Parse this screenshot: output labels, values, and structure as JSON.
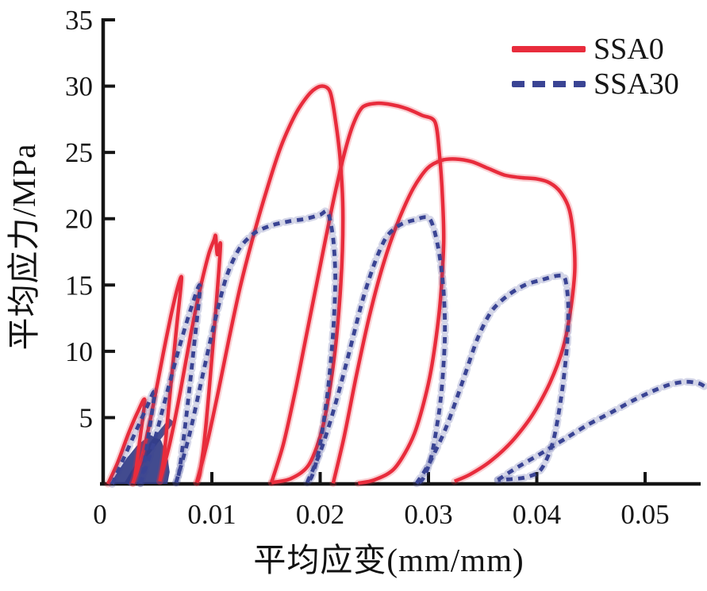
{
  "figure": {
    "background": "#ffffff"
  },
  "chart_data": {
    "type": "line",
    "title": "",
    "xlabel": "平均应变(mm/mm)",
    "ylabel": "平均应力/MPa",
    "xlim": [
      0,
      0.0555
    ],
    "ylim": [
      0,
      35
    ],
    "grid": false,
    "axis_color": "#151515",
    "x_ticks": [
      {
        "v": 0,
        "label": "0"
      },
      {
        "v": 0.01,
        "label": "0.01"
      },
      {
        "v": 0.02,
        "label": "0.02"
      },
      {
        "v": 0.03,
        "label": "0.03"
      },
      {
        "v": 0.04,
        "label": "0.04"
      },
      {
        "v": 0.05,
        "label": "0.05"
      }
    ],
    "y_ticks": [
      {
        "v": 5,
        "label": "5"
      },
      {
        "v": 10,
        "label": "10"
      },
      {
        "v": 15,
        "label": "15"
      },
      {
        "v": 20,
        "label": "20"
      },
      {
        "v": 25,
        "label": "25"
      },
      {
        "v": 30,
        "label": "30"
      },
      {
        "v": 35,
        "label": "35"
      }
    ],
    "legend": {
      "position": "top-right",
      "entries": [
        {
          "name": "SSA0",
          "color": "#e82c3c",
          "line_style": "solid"
        },
        {
          "name": "SSA30",
          "color": "#3a4494",
          "line_style": "dashed"
        }
      ]
    },
    "series": [
      {
        "name": "SSA0",
        "color": "#e82c3c",
        "line_style": "solid",
        "stroke_width": 4.5,
        "description": "cyclic compression stress-strain loops, plain specimen, peak 30 MPa at 0.020 strain",
        "segments": [
          [
            [
              0.0004,
              0
            ],
            [
              0.0013,
              1.6
            ],
            [
              0.0023,
              3.8
            ],
            [
              0.0032,
              5.5
            ],
            [
              0.0038,
              6.3
            ],
            [
              0.0033,
              3.0
            ],
            [
              0.0029,
              0.6
            ],
            [
              0.0027,
              0.05
            ]
          ],
          [
            [
              0.0027,
              0.05
            ],
            [
              0.0036,
              2.2
            ],
            [
              0.0046,
              6.0
            ],
            [
              0.0055,
              9.8
            ],
            [
              0.0062,
              12.6
            ],
            [
              0.0068,
              14.7
            ],
            [
              0.0072,
              15.5
            ],
            [
              0.0067,
              11.5
            ],
            [
              0.0061,
              6.5
            ],
            [
              0.0056,
              2.2
            ],
            [
              0.0052,
              0.2
            ]
          ],
          [
            [
              0.0052,
              0.2
            ],
            [
              0.0061,
              3.0
            ],
            [
              0.0071,
              7.0
            ],
            [
              0.0081,
              11.5
            ],
            [
              0.009,
              15.0
            ],
            [
              0.0097,
              17.3
            ],
            [
              0.0102,
              18.4
            ],
            [
              0.01035,
              18.7
            ],
            [
              0.0105,
              17.3
            ],
            [
              0.0108,
              18.1
            ],
            [
              0.0105,
              14.5
            ],
            [
              0.01,
              9.5
            ],
            [
              0.0094,
              4.0
            ],
            [
              0.0089,
              0.8
            ],
            [
              0.0086,
              0.1
            ]
          ],
          [
            [
              0.0086,
              0.1
            ],
            [
              0.0096,
              3.2
            ],
            [
              0.0106,
              7.0
            ],
            [
              0.0116,
              11.0
            ],
            [
              0.0126,
              14.8
            ],
            [
              0.0137,
              18.3
            ],
            [
              0.015,
              22.0
            ],
            [
              0.0164,
              25.5
            ],
            [
              0.0178,
              28.0
            ],
            [
              0.0191,
              29.5
            ],
            [
              0.0201,
              30.0
            ],
            [
              0.0209,
              29.6
            ],
            [
              0.0214,
              27.5
            ],
            [
              0.0219,
              24.0
            ],
            [
              0.0221,
              20.0
            ],
            [
              0.0219,
              15.0
            ],
            [
              0.0213,
              9.5
            ],
            [
              0.0203,
              4.5
            ],
            [
              0.019,
              1.5
            ],
            [
              0.0173,
              0.4
            ],
            [
              0.0155,
              0.1
            ]
          ],
          [
            [
              0.0155,
              0.1
            ],
            [
              0.0166,
              3.0
            ],
            [
              0.0177,
              7.0
            ],
            [
              0.0188,
              11.5
            ],
            [
              0.0199,
              16.0
            ],
            [
              0.021,
              20.5
            ],
            [
              0.0221,
              24.5
            ],
            [
              0.023,
              27.0
            ],
            [
              0.0239,
              28.4
            ],
            [
              0.0252,
              28.7
            ],
            [
              0.0266,
              28.6
            ],
            [
              0.028,
              28.3
            ],
            [
              0.0294,
              27.8
            ],
            [
              0.0306,
              27.3
            ],
            [
              0.031,
              25.0
            ],
            [
              0.0313,
              21.5
            ],
            [
              0.0314,
              18.0
            ],
            [
              0.031,
              13.0
            ],
            [
              0.0301,
              8.0
            ],
            [
              0.0287,
              3.8
            ],
            [
              0.0269,
              1.2
            ],
            [
              0.025,
              0.3
            ],
            [
              0.0235,
              0.05
            ]
          ],
          [
            [
              0.0212,
              0.05
            ],
            [
              0.0222,
              3.5
            ],
            [
              0.0233,
              8.0
            ],
            [
              0.0245,
              12.5
            ],
            [
              0.0258,
              16.5
            ],
            [
              0.0272,
              19.8
            ],
            [
              0.0286,
              22.3
            ],
            [
              0.0299,
              23.8
            ],
            [
              0.0312,
              24.4
            ],
            [
              0.0325,
              24.5
            ],
            [
              0.034,
              24.3
            ],
            [
              0.0355,
              23.8
            ],
            [
              0.037,
              23.3
            ],
            [
              0.0385,
              23.1
            ],
            [
              0.04,
              23.0
            ],
            [
              0.0412,
              22.7
            ],
            [
              0.0422,
              22.0
            ],
            [
              0.043,
              20.7
            ],
            [
              0.0434,
              18.5
            ],
            [
              0.0435,
              16.0
            ],
            [
              0.0431,
              13.0
            ],
            [
              0.0424,
              10.2
            ],
            [
              0.0412,
              7.6
            ],
            [
              0.0396,
              5.2
            ],
            [
              0.0377,
              3.2
            ],
            [
              0.0357,
              1.7
            ],
            [
              0.0338,
              0.7
            ],
            [
              0.0324,
              0.2
            ]
          ]
        ]
      },
      {
        "name": "SSA30",
        "color": "#3a4494",
        "line_style": "dashed",
        "stroke_width": 4.8,
        "dash_array": "8 7",
        "description": "cyclic compression stress-strain loops, 30% SSA specimen, peak ~20.5 MPa at 0.021 strain",
        "segments": [
          [
            [
              0.0008,
              0
            ],
            [
              0.0019,
              2.0
            ],
            [
              0.003,
              4.0
            ],
            [
              0.004,
              5.8
            ],
            [
              0.0047,
              6.9
            ],
            [
              0.0041,
              3.4
            ],
            [
              0.0036,
              0.7
            ],
            [
              0.0034,
              0.05
            ]
          ],
          [
            [
              0.0034,
              0.05
            ],
            [
              0.0046,
              3.0
            ],
            [
              0.0059,
              7.0
            ],
            [
              0.0071,
              10.6
            ],
            [
              0.0081,
              13.3
            ],
            [
              0.0089,
              14.9
            ],
            [
              0.0083,
              10.0
            ],
            [
              0.0076,
              4.8
            ],
            [
              0.007,
              1.0
            ],
            [
              0.0067,
              0.1
            ]
          ],
          [
            [
              0.0067,
              0.1
            ],
            [
              0.0079,
              3.6
            ],
            [
              0.0091,
              8.0
            ],
            [
              0.0102,
              12.0
            ],
            [
              0.0113,
              15.5
            ],
            [
              0.0125,
              17.7
            ],
            [
              0.0139,
              18.9
            ],
            [
              0.0155,
              19.5
            ],
            [
              0.0171,
              19.8
            ],
            [
              0.0187,
              20.0
            ],
            [
              0.02,
              20.3
            ],
            [
              0.0207,
              20.5
            ],
            [
              0.0212,
              18.5
            ],
            [
              0.0214,
              15.5
            ],
            [
              0.0212,
              11.5
            ],
            [
              0.0207,
              7.0
            ],
            [
              0.02,
              3.0
            ],
            [
              0.0193,
              0.7
            ],
            [
              0.0188,
              0.1
            ]
          ],
          [
            [
              0.0188,
              0.1
            ],
            [
              0.0201,
              2.6
            ],
            [
              0.0214,
              6.0
            ],
            [
              0.0227,
              10.0
            ],
            [
              0.0239,
              13.8
            ],
            [
              0.025,
              16.6
            ],
            [
              0.0261,
              18.6
            ],
            [
              0.0273,
              19.5
            ],
            [
              0.0287,
              19.9
            ],
            [
              0.0301,
              20.0
            ],
            [
              0.0309,
              17.8
            ],
            [
              0.0314,
              14.5
            ],
            [
              0.0315,
              10.8
            ],
            [
              0.0311,
              6.2
            ],
            [
              0.0303,
              2.2
            ],
            [
              0.0295,
              0.4
            ],
            [
              0.0289,
              0.05
            ]
          ],
          [
            [
              0.0289,
              0.05
            ],
            [
              0.0301,
              1.6
            ],
            [
              0.0316,
              4.2
            ],
            [
              0.0331,
              7.6
            ],
            [
              0.0345,
              10.9
            ],
            [
              0.0358,
              13.0
            ],
            [
              0.0373,
              14.2
            ],
            [
              0.0389,
              15.0
            ],
            [
              0.0405,
              15.4
            ],
            [
              0.0419,
              15.7
            ],
            [
              0.0426,
              15.5
            ],
            [
              0.0429,
              13.5
            ],
            [
              0.0428,
              10.5
            ],
            [
              0.0423,
              6.8
            ],
            [
              0.0415,
              3.2
            ],
            [
              0.0404,
              1.1
            ],
            [
              0.039,
              0.5
            ],
            [
              0.0374,
              0.35
            ],
            [
              0.0364,
              0.3
            ]
          ],
          [
            [
              0.0364,
              0.3
            ],
            [
              0.0383,
              1.3
            ],
            [
              0.0404,
              2.3
            ],
            [
              0.0426,
              3.4
            ],
            [
              0.0448,
              4.5
            ],
            [
              0.0469,
              5.4
            ],
            [
              0.0489,
              6.3
            ],
            [
              0.0507,
              7.0
            ],
            [
              0.0523,
              7.5
            ],
            [
              0.0537,
              7.7
            ],
            [
              0.0549,
              7.6
            ],
            [
              0.0556,
              7.3
            ]
          ]
        ]
      }
    ],
    "origin_cluster": {
      "color": "#323c86",
      "polygon": [
        [
          0.0006,
          0
        ],
        [
          0.0013,
          0.9
        ],
        [
          0.0021,
          1.9
        ],
        [
          0.0031,
          2.9
        ],
        [
          0.0043,
          3.7
        ],
        [
          0.0053,
          3.3
        ],
        [
          0.0059,
          2.1
        ],
        [
          0.0061,
          0.9
        ],
        [
          0.0059,
          0
        ]
      ],
      "stroke": [
        [
          0.0022,
          0
        ],
        [
          0.004,
          2.4
        ],
        [
          0.0063,
          4.8
        ]
      ]
    }
  }
}
